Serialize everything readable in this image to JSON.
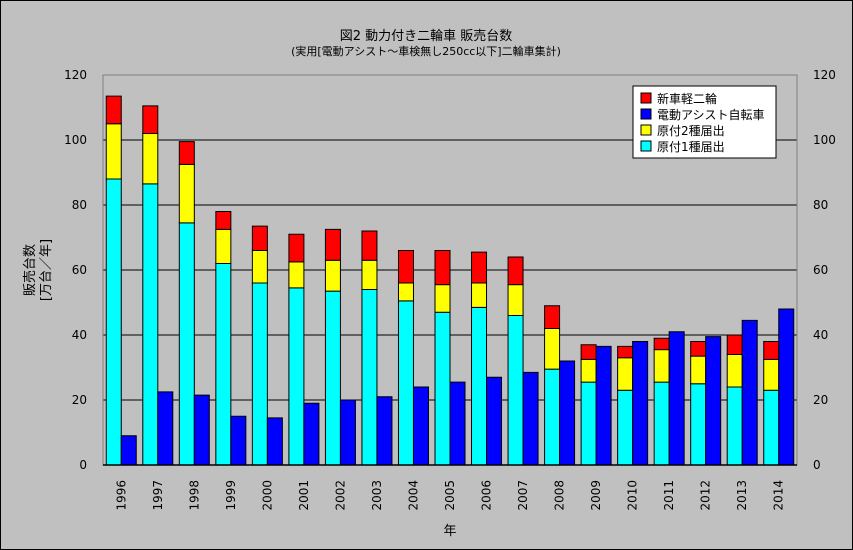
{
  "chart_data": {
    "type": "bar",
    "title": "図2 動力付き二輪車 販売台数",
    "subtitle": "(実用[電動アシスト〜車検無し250cc以下]二輪車集計)",
    "xlabel": "年",
    "ylabel": "販売台数\n[万台／年]",
    "ylim": [
      0,
      120
    ],
    "y_ticks": [
      0,
      20,
      40,
      60,
      80,
      100,
      120
    ],
    "categories": [
      "1996",
      "1997",
      "1998",
      "1999",
      "2000",
      "2001",
      "2002",
      "2003",
      "2004",
      "2005",
      "2006",
      "2007",
      "2008",
      "2009",
      "2010",
      "2011",
      "2012",
      "2013",
      "2014"
    ],
    "stacked_series": [
      {
        "name": "原付1種届出",
        "color": "#00ffff",
        "values": [
          88,
          86.5,
          74.5,
          62,
          56,
          54.5,
          53.5,
          54,
          50.5,
          47,
          48.5,
          46,
          29.5,
          25.5,
          23,
          25.5,
          25,
          24,
          23
        ]
      },
      {
        "name": "原付2種届出",
        "color": "#ffff00",
        "values": [
          17,
          15.5,
          18,
          10.5,
          10,
          8,
          9.5,
          9,
          5.5,
          8.5,
          7.5,
          9.5,
          12.5,
          7,
          10,
          10,
          8.5,
          10,
          9.5
        ]
      },
      {
        "name": "新車軽二輪",
        "color": "#ff0000",
        "values": [
          8.5,
          8.5,
          7,
          5.5,
          7.5,
          8.5,
          9.5,
          9,
          10,
          10.5,
          9.5,
          8.5,
          7,
          4.5,
          3.5,
          3.5,
          4.5,
          6,
          5.5
        ]
      }
    ],
    "side_series": {
      "name": "電動アシスト自転車",
      "color": "#0000ff",
      "values": [
        9,
        22.5,
        21.5,
        15,
        14.5,
        19,
        20,
        21,
        24,
        25.5,
        27,
        28.5,
        32,
        36.5,
        38,
        41,
        39.5,
        44.5,
        48
      ]
    },
    "legend": {
      "position": "top-right",
      "entries": [
        {
          "name": "新車軽二輪",
          "color": "#ff0000"
        },
        {
          "name": "電動アシスト自転車",
          "color": "#0000ff"
        },
        {
          "name": "原付2種届出",
          "color": "#ffff00"
        },
        {
          "name": "原付1種届出",
          "color": "#00ffff"
        }
      ]
    },
    "grid": true,
    "plot_background": "#c0c0c0",
    "right_axis_mirror": true
  }
}
